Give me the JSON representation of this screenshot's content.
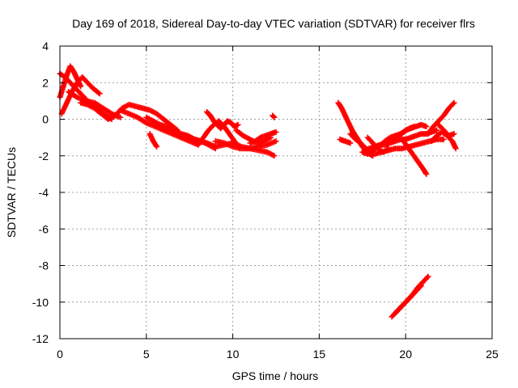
{
  "chart_data": {
    "type": "scatter",
    "title": "Day 169 of 2018, Sidereal Day-to-day VTEC variation (SDTVAR) for receiver flrs",
    "xlabel": "GPS time / hours",
    "ylabel": "SDTVAR / TECUs",
    "xlim": [
      0,
      25
    ],
    "ylim": [
      -12,
      4
    ],
    "xticks": [
      0,
      5,
      10,
      15,
      20,
      25
    ],
    "yticks": [
      -12,
      -10,
      -8,
      -6,
      -4,
      -2,
      0,
      2,
      4
    ],
    "xtick_labels": [
      "0",
      "5",
      "10",
      "15",
      "20",
      "25"
    ],
    "ytick_labels": [
      "-12",
      "-10",
      "-8",
      "-6",
      "-4",
      "-2",
      "0",
      "2",
      "4"
    ],
    "grid": true,
    "marker": "plus",
    "color": "#ff0000",
    "series": [
      {
        "name": "flrs",
        "tracks": [
          {
            "x": [
              0.0,
              0.3,
              0.6,
              0.9,
              1.2,
              1.5,
              1.8,
              2.1,
              2.4,
              2.7,
              3.0
            ],
            "y": [
              2.5,
              2.3,
              2.0,
              1.7,
              1.4,
              1.1,
              0.8,
              0.6,
              0.4,
              0.2,
              0.0
            ]
          },
          {
            "x": [
              0.0,
              0.2,
              0.4,
              0.6,
              0.8,
              1.0,
              1.2
            ],
            "y": [
              1.2,
              1.8,
              2.4,
              2.9,
              2.6,
              2.2,
              1.8
            ]
          },
          {
            "x": [
              0.1,
              0.4,
              0.7,
              1.0,
              1.3,
              1.6,
              1.9,
              2.3
            ],
            "y": [
              0.3,
              0.9,
              1.5,
              2.0,
              2.3,
              2.0,
              1.7,
              1.4
            ]
          },
          {
            "x": [
              0.5,
              1.0,
              1.5,
              2.0,
              2.5,
              3.0,
              3.5
            ],
            "y": [
              1.5,
              1.2,
              1.0,
              0.9,
              0.6,
              0.3,
              0.1
            ]
          },
          {
            "x": [
              1.2,
              1.6,
              2.0,
              2.4,
              2.8,
              3.2,
              3.6,
              4.0,
              4.4,
              4.8,
              5.2,
              5.6,
              6.0,
              6.4,
              6.8
            ],
            "y": [
              0.9,
              0.8,
              0.6,
              0.3,
              0.0,
              0.2,
              0.6,
              0.8,
              0.7,
              0.6,
              0.5,
              0.3,
              0.0,
              -0.3,
              -0.6
            ]
          },
          {
            "x": [
              3.5,
              4.0,
              4.5,
              5.0,
              5.5,
              6.0,
              6.5,
              7.0,
              7.5,
              8.0
            ],
            "y": [
              0.5,
              0.3,
              0.1,
              -0.2,
              -0.4,
              -0.6,
              -0.8,
              -1.0,
              -1.2,
              -1.4
            ]
          },
          {
            "x": [
              5.0,
              5.4,
              5.8,
              6.2,
              6.6,
              7.0,
              7.4,
              7.8,
              8.2,
              8.6,
              9.0
            ],
            "y": [
              0.1,
              -0.1,
              -0.3,
              -0.4,
              -0.6,
              -0.8,
              -0.9,
              -1.1,
              -1.2,
              -1.4,
              -1.6
            ]
          },
          {
            "x": [
              5.2,
              5.4,
              5.6
            ],
            "y": [
              -0.8,
              -1.2,
              -1.5
            ]
          },
          {
            "x": [
              6.0,
              6.5,
              7.0,
              7.5,
              8.0,
              8.5,
              9.0,
              9.5,
              10.0,
              10.5,
              11.0,
              11.5,
              12.0,
              12.4
            ],
            "y": [
              -0.5,
              -0.6,
              -0.8,
              -1.0,
              -1.2,
              -1.3,
              -1.5,
              -1.4,
              -1.3,
              -1.5,
              -1.6,
              -1.7,
              -1.8,
              -2.0
            ]
          },
          {
            "x": [
              8.0,
              8.3,
              8.6,
              8.9,
              9.2,
              9.5,
              9.8,
              10.1,
              10.4
            ],
            "y": [
              -1.4,
              -1.0,
              -0.6,
              -0.3,
              -0.1,
              -0.4,
              -0.8,
              -1.2,
              -1.6
            ]
          },
          {
            "x": [
              8.5,
              8.7,
              8.9,
              9.1,
              9.3,
              9.5,
              9.7,
              9.9,
              10.1,
              10.3
            ],
            "y": [
              0.4,
              0.2,
              -0.1,
              -0.3,
              -0.5,
              -0.3,
              -0.1,
              -0.2,
              -0.4,
              -0.3
            ]
          },
          {
            "x": [
              9.0,
              9.5,
              10.0,
              10.5,
              11.0,
              11.5,
              12.0,
              12.5
            ],
            "y": [
              -1.2,
              -1.3,
              -1.5,
              -1.6,
              -1.6,
              -1.5,
              -1.4,
              -1.2
            ]
          },
          {
            "x": [
              10.2,
              10.6,
              11.0,
              11.4,
              11.8,
              12.2
            ],
            "y": [
              -0.6,
              -0.9,
              -1.1,
              -1.3,
              -1.2,
              -1.0
            ]
          },
          {
            "x": [
              11.0,
              11.3,
              11.6,
              11.9,
              12.2,
              12.5
            ],
            "y": [
              -1.3,
              -1.2,
              -1.0,
              -0.9,
              -0.8,
              -0.7
            ]
          },
          {
            "x": [
              12.3,
              12.4
            ],
            "y": [
              0.2,
              0.1
            ]
          },
          {
            "x": [
              16.1,
              16.3,
              16.5,
              16.7,
              16.9,
              17.1,
              17.3,
              17.5,
              17.7,
              17.9,
              18.1
            ],
            "y": [
              0.9,
              0.6,
              0.2,
              -0.2,
              -0.6,
              -0.9,
              -1.2,
              -1.5,
              -1.7,
              -1.9,
              -2.0
            ]
          },
          {
            "x": [
              16.2,
              16.5,
              16.8
            ],
            "y": [
              -1.1,
              -1.2,
              -1.3
            ]
          },
          {
            "x": [
              16.8,
              17.1,
              17.4,
              17.7,
              18.0
            ],
            "y": [
              -0.8,
              -1.1,
              -1.3,
              -1.6,
              -1.8
            ]
          },
          {
            "x": [
              17.5,
              17.8,
              18.1,
              18.4,
              18.7,
              19.0,
              19.3,
              19.6,
              19.9,
              20.2,
              20.5
            ],
            "y": [
              -1.8,
              -1.9,
              -1.7,
              -1.5,
              -1.3,
              -1.2,
              -1.0,
              -0.9,
              -0.7,
              -0.5,
              -0.4
            ]
          },
          {
            "x": [
              17.6,
              17.9,
              18.2,
              18.5,
              18.8,
              19.1,
              19.4,
              19.7,
              20.0,
              20.3,
              20.6,
              20.9,
              21.2,
              21.5,
              21.8
            ],
            "y": [
              -1.7,
              -1.6,
              -1.5,
              -1.4,
              -1.4,
              -1.3,
              -1.2,
              -1.1,
              -1.1,
              -1.0,
              -0.9,
              -0.8,
              -0.8,
              -0.7,
              -0.6
            ]
          },
          {
            "x": [
              17.8,
              18.1,
              18.4,
              18.7,
              19.0
            ],
            "y": [
              -1.0,
              -1.3,
              -1.6,
              -1.8,
              -1.6
            ]
          },
          {
            "x": [
              18.5,
              18.8,
              19.1,
              19.4,
              19.7,
              20.0,
              20.3,
              20.6,
              20.9,
              21.2
            ],
            "y": [
              -1.5,
              -1.2,
              -1.0,
              -0.9,
              -0.8,
              -0.6,
              -0.5,
              -0.4,
              -0.3,
              -0.4
            ]
          },
          {
            "x": [
              18.2,
              18.6,
              19.0,
              19.4,
              19.8,
              20.2,
              20.6,
              21.0,
              21.4,
              21.8,
              22.2
            ],
            "y": [
              -1.9,
              -1.8,
              -1.7,
              -1.6,
              -1.6,
              -1.5,
              -1.4,
              -1.3,
              -1.2,
              -1.1,
              -1.1
            ]
          },
          {
            "x": [
              19.8,
              20.1,
              20.4,
              20.7,
              21.0,
              21.2
            ],
            "y": [
              -1.1,
              -1.5,
              -1.9,
              -2.3,
              -2.7,
              -3.0
            ]
          },
          {
            "x": [
              21.3,
              21.6,
              21.9,
              22.2,
              22.5,
              22.8
            ],
            "y": [
              -0.8,
              -0.4,
              -0.1,
              0.2,
              0.6,
              0.9
            ]
          },
          {
            "x": [
              21.5,
              21.8,
              22.1,
              22.4,
              22.7,
              22.9
            ],
            "y": [
              -1.2,
              -0.9,
              -0.7,
              -0.9,
              -1.2,
              -1.6
            ]
          },
          {
            "x": [
              21.9,
              22.2,
              22.5,
              22.8
            ],
            "y": [
              -0.3,
              -0.6,
              -0.9,
              -0.8
            ]
          },
          {
            "x": [
              19.2,
              19.5,
              19.8,
              20.1,
              20.4,
              20.7,
              21.0,
              21.3
            ],
            "y": [
              -10.8,
              -10.5,
              -10.2,
              -9.9,
              -9.6,
              -9.2,
              -8.9,
              -8.6
            ]
          },
          {
            "x": [
              19.4,
              19.7,
              20.0,
              20.3,
              20.6,
              20.9
            ],
            "y": [
              -10.6,
              -10.3,
              -10.0,
              -9.7,
              -9.4,
              -9.1
            ]
          }
        ]
      }
    ]
  }
}
